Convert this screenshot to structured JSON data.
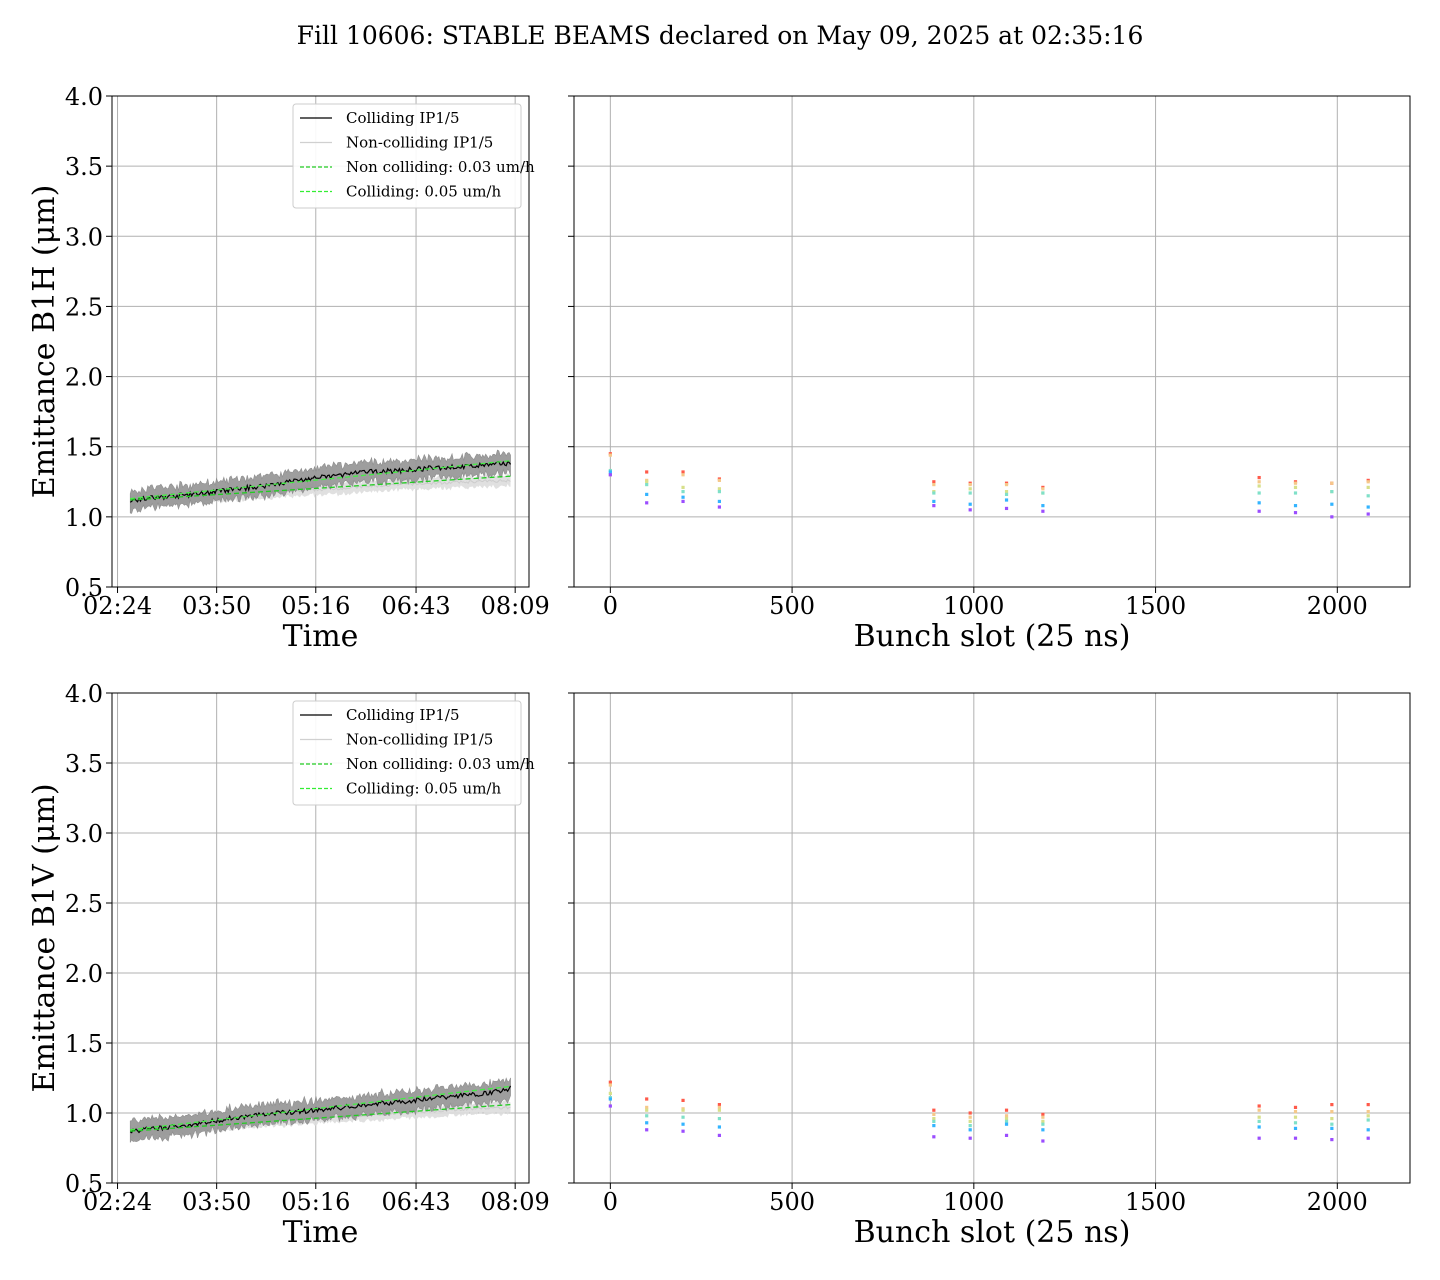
{
  "figure": {
    "title": "Fill 10606: STABLE BEAMS declared on May 09, 2025 at 02:35:16"
  },
  "legend": {
    "items": [
      {
        "label": "Colliding IP1/5",
        "color": "#000000",
        "style": "solid"
      },
      {
        "label": "Non-colliding IP1/5",
        "color": "#d0d0d0",
        "style": "solid"
      },
      {
        "label": "Non colliding: 0.03 um/h",
        "color": "#22cc22",
        "style": "dashed"
      },
      {
        "label": "Colliding: 0.05 um/h",
        "color": "#33ee33",
        "style": "dashed"
      }
    ]
  },
  "colors": {
    "colliding": "#000000",
    "colliding_band": "#999999",
    "non_colliding": "#cccccc",
    "fit_non_colliding": "#22cc22",
    "fit_colliding": "#44ee44",
    "grid": "#b0b0b0",
    "bunch_series": [
      "#ff5a4a",
      "#f5c98a",
      "#d7e08a",
      "#7fe0c8",
      "#33b4ff",
      "#9b4dff"
    ]
  },
  "chart_data": [
    {
      "id": "b1h-time",
      "type": "line",
      "title": "",
      "xlabel": "Time",
      "ylabel": "Emittance B1H (μm)",
      "xticks": [
        "02:24",
        "03:50",
        "05:16",
        "06:43",
        "08:09"
      ],
      "xlim_hours": [
        2.32,
        8.35
      ],
      "ylim": [
        0.5,
        4.0
      ],
      "yticks": [
        "0.5",
        "1.0",
        "1.5",
        "2.0",
        "2.5",
        "3.0",
        "3.5",
        "4.0"
      ],
      "grid": true,
      "legend_position": "upper right",
      "series": [
        {
          "name": "Colliding IP1/5",
          "time": [
            "02:35",
            "03:00",
            "03:30",
            "04:00",
            "04:30",
            "05:00",
            "05:30",
            "06:00",
            "06:30",
            "07:00",
            "07:30",
            "08:00",
            "08:05"
          ],
          "values": [
            1.12,
            1.14,
            1.16,
            1.19,
            1.22,
            1.26,
            1.29,
            1.32,
            1.33,
            1.35,
            1.36,
            1.38,
            1.39
          ]
        },
        {
          "name": "Non-colliding IP1/5",
          "time": [
            "02:35",
            "03:30",
            "04:30",
            "05:30",
            "06:30",
            "07:30",
            "08:05"
          ],
          "values": [
            1.11,
            1.14,
            1.17,
            1.2,
            1.23,
            1.25,
            1.26
          ]
        },
        {
          "name": "Non colliding: 0.03 um/h",
          "time": [
            "02:35",
            "08:05"
          ],
          "values": [
            1.12,
            1.29
          ]
        },
        {
          "name": "Colliding: 0.05 um/h",
          "time": [
            "02:35",
            "08:05"
          ],
          "values": [
            1.13,
            1.4
          ]
        }
      ]
    },
    {
      "id": "b1h-bunch",
      "type": "scatter",
      "xlabel": "Bunch slot (25 ns)",
      "ylabel": "",
      "xlim": [
        -100,
        2200
      ],
      "ylim": [
        0.5,
        4.0
      ],
      "xticks": [
        "0",
        "500",
        "1000",
        "1500",
        "2000"
      ],
      "grid": true,
      "x": [
        0,
        100,
        200,
        300,
        890,
        990,
        1090,
        1190,
        1785,
        1885,
        1985,
        2085
      ],
      "series": [
        {
          "values": [
            1.45,
            1.32,
            1.32,
            1.27,
            1.25,
            1.24,
            1.24,
            1.21,
            1.28,
            1.25,
            1.24,
            1.26
          ]
        },
        {
          "values": [
            1.44,
            1.26,
            1.3,
            1.26,
            1.23,
            1.23,
            1.23,
            1.2,
            1.25,
            1.24,
            1.24,
            1.25
          ]
        },
        {
          "values": [
            1.3,
            1.25,
            1.21,
            1.2,
            1.18,
            1.2,
            1.18,
            1.17,
            1.22,
            1.21,
            1.18,
            1.21
          ]
        },
        {
          "values": [
            1.33,
            1.23,
            1.18,
            1.18,
            1.17,
            1.17,
            1.16,
            1.17,
            1.17,
            1.17,
            1.18,
            1.15
          ]
        },
        {
          "values": [
            1.32,
            1.16,
            1.14,
            1.11,
            1.11,
            1.09,
            1.12,
            1.08,
            1.1,
            1.08,
            1.09,
            1.07
          ]
        },
        {
          "values": [
            1.3,
            1.1,
            1.11,
            1.07,
            1.08,
            1.05,
            1.06,
            1.04,
            1.04,
            1.03,
            1.0,
            1.02
          ]
        }
      ]
    },
    {
      "id": "b1v-time",
      "type": "line",
      "title": "",
      "xlabel": "Time",
      "ylabel": "Emittance B1V (μm)",
      "xticks": [
        "02:24",
        "03:50",
        "05:16",
        "06:43",
        "08:09"
      ],
      "xlim_hours": [
        2.32,
        8.35
      ],
      "ylim": [
        0.5,
        4.0
      ],
      "yticks": [
        "0.5",
        "1.0",
        "1.5",
        "2.0",
        "2.5",
        "3.0",
        "3.5",
        "4.0"
      ],
      "grid": true,
      "legend_position": "upper right",
      "series": [
        {
          "name": "Colliding IP1/5",
          "time": [
            "02:35",
            "03:00",
            "03:30",
            "04:00",
            "04:30",
            "05:00",
            "05:30",
            "06:00",
            "06:30",
            "07:00",
            "07:30",
            "08:00",
            "08:05"
          ],
          "values": [
            0.87,
            0.89,
            0.92,
            0.96,
            0.99,
            1.01,
            1.03,
            1.06,
            1.08,
            1.11,
            1.13,
            1.16,
            1.18
          ]
        },
        {
          "name": "Non-colliding IP1/5",
          "time": [
            "02:35",
            "03:30",
            "04:30",
            "05:30",
            "06:30",
            "07:30",
            "08:05"
          ],
          "values": [
            0.86,
            0.9,
            0.94,
            0.97,
            1.0,
            1.03,
            1.04
          ]
        },
        {
          "name": "Non colliding: 0.03 um/h",
          "time": [
            "02:35",
            "08:05"
          ],
          "values": [
            0.87,
            1.06
          ]
        },
        {
          "name": "Colliding: 0.05 um/h",
          "time": [
            "02:35",
            "08:05"
          ],
          "values": [
            0.88,
            1.19
          ]
        }
      ]
    },
    {
      "id": "b1v-bunch",
      "type": "scatter",
      "xlabel": "Bunch slot (25 ns)",
      "ylabel": "",
      "xlim": [
        -100,
        2200
      ],
      "ylim": [
        0.5,
        4.0
      ],
      "xticks": [
        "0",
        "500",
        "1000",
        "1500",
        "2000"
      ],
      "grid": true,
      "x": [
        0,
        100,
        200,
        300,
        890,
        990,
        1090,
        1190,
        1785,
        1885,
        1985,
        2085
      ],
      "series": [
        {
          "values": [
            1.22,
            1.1,
            1.09,
            1.06,
            1.02,
            1.0,
            1.02,
            0.99,
            1.05,
            1.04,
            1.06,
            1.06
          ]
        },
        {
          "values": [
            1.2,
            1.04,
            1.03,
            1.04,
            0.99,
            0.97,
            0.98,
            0.97,
            1.02,
            1.01,
            1.01,
            1.01
          ]
        },
        {
          "values": [
            1.14,
            1.02,
            1.02,
            1.02,
            0.96,
            0.94,
            0.96,
            0.94,
            0.97,
            0.97,
            0.96,
            0.98
          ]
        },
        {
          "values": [
            1.11,
            0.98,
            0.97,
            0.96,
            0.94,
            0.91,
            0.94,
            0.92,
            0.94,
            0.93,
            0.92,
            0.95
          ]
        },
        {
          "values": [
            1.1,
            0.93,
            0.92,
            0.9,
            0.91,
            0.88,
            0.92,
            0.88,
            0.9,
            0.89,
            0.89,
            0.88
          ]
        },
        {
          "values": [
            1.05,
            0.88,
            0.87,
            0.84,
            0.83,
            0.82,
            0.84,
            0.8,
            0.82,
            0.82,
            0.81,
            0.82
          ]
        }
      ]
    }
  ]
}
